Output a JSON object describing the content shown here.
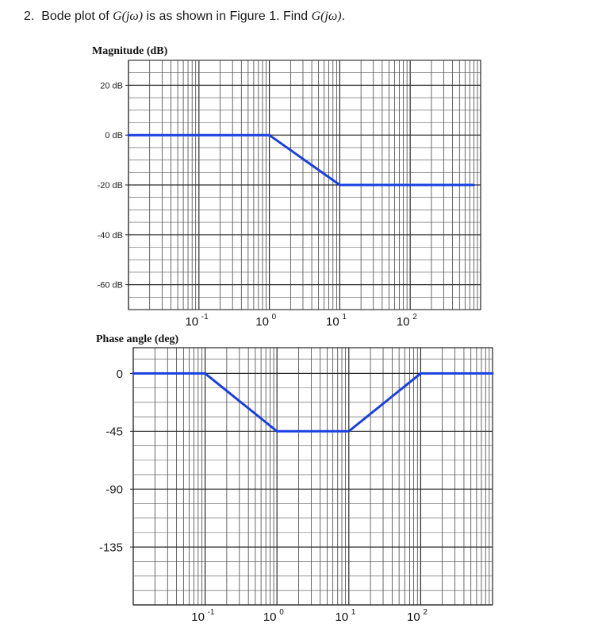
{
  "question": {
    "number": "2.",
    "text_before": "Bode plot of",
    "math1": "G(jω)",
    "text_middle": "is as shown in Figure 1. Find",
    "math2": "G(jω)",
    "text_end": "."
  },
  "chart_data": [
    {
      "type": "line",
      "title": "Magnitude (dB)",
      "xscale": "log",
      "xlim": [
        0.01,
        1000
      ],
      "ylim": [
        -70,
        30
      ],
      "grid": true,
      "xticks": [
        0.1,
        1,
        10,
        100
      ],
      "xtick_labels": [
        {
          "base": "10",
          "exp": "-1"
        },
        {
          "base": "10",
          "exp": "0"
        },
        {
          "base": "10",
          "exp": "1"
        },
        {
          "base": "10",
          "exp": "2"
        }
      ],
      "yticks": [
        20,
        0,
        -20,
        -40,
        -60
      ],
      "ytick_labels": [
        "20 dB",
        "0 dB",
        "-20 dB",
        "-40 dB",
        "-60 dB"
      ],
      "series": [
        {
          "x": [
            0.01,
            1,
            10,
            800
          ],
          "y": [
            0,
            0,
            -20,
            -20
          ],
          "color": "#1a40e0"
        }
      ]
    },
    {
      "type": "line",
      "title": "Phase angle (deg)",
      "xscale": "log",
      "xlim": [
        0.01,
        1000
      ],
      "ylim": [
        -180,
        20
      ],
      "grid": true,
      "xticks": [
        0.1,
        1,
        10,
        100
      ],
      "xtick_labels": [
        {
          "base": "10",
          "exp": "-1"
        },
        {
          "base": "10",
          "exp": "0"
        },
        {
          "base": "10",
          "exp": "1"
        },
        {
          "base": "10",
          "exp": "2"
        }
      ],
      "yticks": [
        0,
        -45,
        -90,
        -135
      ],
      "ytick_labels": [
        "0",
        "-45",
        "-90",
        "-135"
      ],
      "series": [
        {
          "x": [
            0.01,
            0.1,
            1,
            10,
            100,
            1000
          ],
          "y": [
            0,
            0,
            -45,
            -45,
            0,
            0
          ],
          "color": "#1a40e0"
        }
      ]
    }
  ]
}
